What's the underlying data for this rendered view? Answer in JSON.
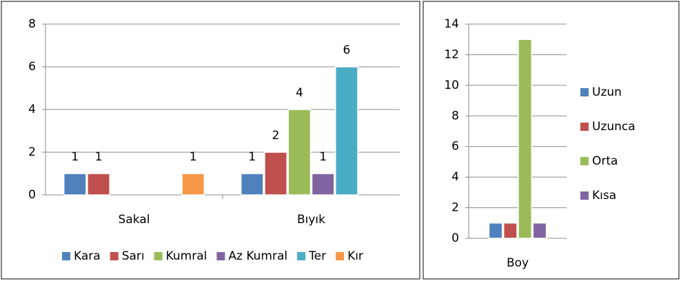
{
  "chart_data": [
    {
      "type": "bar",
      "categories": [
        "Sakal",
        "Bıyık"
      ],
      "series": [
        {
          "name": "Kara",
          "color": "#4f81bd",
          "values": [
            1,
            1
          ]
        },
        {
          "name": "Sarı",
          "color": "#c0504d",
          "values": [
            1,
            2
          ]
        },
        {
          "name": "Kumral",
          "color": "#9bbb59",
          "values": [
            null,
            4
          ]
        },
        {
          "name": "Az Kumral",
          "color": "#8064a2",
          "values": [
            null,
            1
          ]
        },
        {
          "name": "Ter",
          "color": "#4bacc6",
          "values": [
            null,
            6
          ]
        },
        {
          "name": "Kır",
          "color": "#f79646",
          "values": [
            1,
            null
          ]
        }
      ],
      "ylim": [
        0,
        8
      ],
      "yticks": [
        0,
        2,
        4,
        6,
        8
      ],
      "grid": true,
      "data_labels": true,
      "legend": "bottom"
    },
    {
      "type": "bar",
      "categories": [
        "Boy"
      ],
      "series": [
        {
          "name": "Uzun",
          "color": "#4f81bd",
          "values": [
            1
          ]
        },
        {
          "name": "Uzunca",
          "color": "#c0504d",
          "values": [
            1
          ]
        },
        {
          "name": "Orta",
          "color": "#9bbb59",
          "values": [
            13
          ]
        },
        {
          "name": "Kısa",
          "color": "#8064a2",
          "values": [
            1
          ]
        }
      ],
      "ylim": [
        0,
        14
      ],
      "yticks": [
        0,
        2,
        4,
        6,
        8,
        10,
        12,
        14
      ],
      "grid": true,
      "data_labels": false,
      "legend": "right"
    }
  ]
}
